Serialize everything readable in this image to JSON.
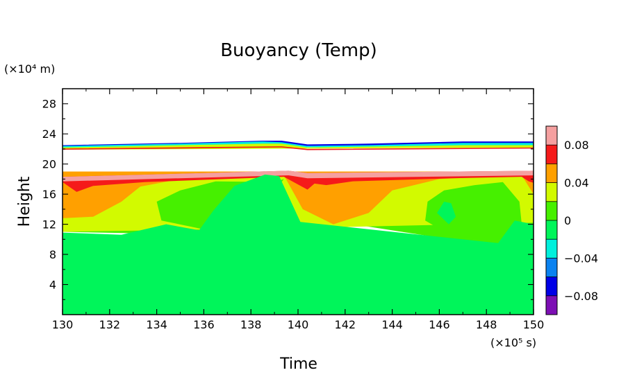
{
  "chart_data": {
    "type": "heatmap",
    "title": "Buoyancy (Temp)",
    "xlabel": "Time",
    "ylabel": "Height",
    "x_unit": "(×10⁵ s)",
    "y_unit": "(×10⁴ m)",
    "xlim": [
      130,
      150
    ],
    "ylim": [
      0,
      30
    ],
    "x_ticks": [
      "130",
      "132",
      "134",
      "136",
      "138",
      "140",
      "142",
      "144",
      "146",
      "148",
      "150"
    ],
    "y_ticks": [
      "4",
      "8",
      "12",
      "16",
      "20",
      "24",
      "28"
    ],
    "colorbar": {
      "range": [
        -0.1,
        0.1
      ],
      "labels": [
        "−0.08",
        "−0.04",
        "0",
        "0.04",
        "0.08"
      ],
      "label_values": [
        -0.08,
        -0.04,
        0,
        0.04,
        0.08
      ],
      "levels": [
        {
          "min": -0.1,
          "max": -0.08,
          "color": "#7d0fb4"
        },
        {
          "min": -0.08,
          "max": -0.06,
          "color": "#0000e6"
        },
        {
          "min": -0.06,
          "max": -0.04,
          "color": "#0a82f0"
        },
        {
          "min": -0.04,
          "max": -0.02,
          "color": "#00f0dc"
        },
        {
          "min": -0.02,
          "max": 0.0,
          "color": "#00f55a"
        },
        {
          "min": 0.0,
          "max": 0.02,
          "color": "#46f000"
        },
        {
          "min": 0.02,
          "max": 0.04,
          "color": "#d2fa00"
        },
        {
          "min": 0.04,
          "max": 0.06,
          "color": "#ffa000"
        },
        {
          "min": 0.06,
          "max": 0.08,
          "color": "#f51a1a"
        },
        {
          "min": 0.08,
          "max": 0.1,
          "color": "#f5a0a0"
        }
      ]
    },
    "regions": [
      {
        "level": "0 to 0.02",
        "color": "#46f000",
        "points": [
          [
            130,
            11
          ],
          [
            138.2,
            10.5
          ],
          [
            139.6,
            19
          ],
          [
            140.3,
            13
          ],
          [
            148.5,
            9
          ],
          [
            150,
            12
          ],
          [
            150,
            19
          ],
          [
            130,
            19
          ]
        ]
      },
      {
        "level": "0.02 to 0.04",
        "color": "#d2fa00",
        "points": [
          [
            130,
            11
          ],
          [
            140,
            11.5
          ],
          [
            150,
            12.2
          ],
          [
            150,
            19
          ],
          [
            130,
            19
          ]
        ]
      },
      {
        "level": "0.04 to 0.06",
        "color": "#ffa000",
        "points": [
          [
            130,
            12.8
          ],
          [
            131.3,
            13
          ],
          [
            132.5,
            15
          ],
          [
            133.3,
            17
          ],
          [
            135,
            18
          ],
          [
            139.4,
            18.5
          ],
          [
            140.2,
            14
          ],
          [
            141.5,
            12
          ],
          [
            143,
            13.5
          ],
          [
            144,
            16.5
          ],
          [
            146,
            18
          ],
          [
            149.5,
            18.5
          ],
          [
            150,
            16
          ],
          [
            150,
            19
          ],
          [
            130,
            19
          ]
        ]
      },
      {
        "level": "0.06 to 0.08",
        "color": "#f51a1a",
        "points": [
          [
            130,
            18.3
          ],
          [
            139.6,
            19.1
          ],
          [
            140.4,
            18.8
          ],
          [
            150,
            19.1
          ],
          [
            150,
            17.5
          ],
          [
            149.8,
            17.7
          ],
          [
            149.5,
            18.3
          ],
          [
            146.5,
            18.1
          ],
          [
            142.3,
            17.7
          ],
          [
            141.2,
            17.2
          ],
          [
            140.7,
            17.4
          ],
          [
            140.4,
            16.6
          ],
          [
            139.4,
            18.3
          ],
          [
            133.5,
            17.6
          ],
          [
            131.3,
            17.1
          ],
          [
            130.6,
            16.3
          ],
          [
            130,
            17.6
          ]
        ]
      },
      {
        "level": "0.08 to 0.10",
        "color": "#f5a0a0",
        "points": [
          [
            130,
            18.3
          ],
          [
            139.6,
            19.1
          ],
          [
            140.4,
            18.8
          ],
          [
            150,
            19.1
          ],
          [
            150,
            18.5
          ],
          [
            140.4,
            18.1
          ],
          [
            139.6,
            18.5
          ],
          [
            130,
            17.7
          ]
        ]
      },
      {
        "level": "0 to 0.02",
        "color": "#46f000",
        "points": [
          [
            134,
            15
          ],
          [
            135,
            16.5
          ],
          [
            136.5,
            17.7
          ],
          [
            139,
            17.6
          ],
          [
            139.4,
            18
          ],
          [
            138.4,
            14
          ],
          [
            137.2,
            11
          ],
          [
            136.5,
            11
          ],
          [
            134.2,
            12.5
          ]
        ]
      },
      {
        "level": "0 to 0.02",
        "color": "#46f000",
        "points": [
          [
            145.5,
            15
          ],
          [
            146.2,
            16.5
          ],
          [
            147.5,
            17.2
          ],
          [
            148.7,
            17.6
          ],
          [
            149.4,
            15
          ],
          [
            149.5,
            12
          ],
          [
            146.5,
            10.5
          ],
          [
            145.4,
            12.5
          ]
        ]
      },
      {
        "level": "-0.02 to 0",
        "color": "#00f55a",
        "points": [
          [
            130,
            0
          ],
          [
            150,
            0
          ],
          [
            150,
            12
          ],
          [
            149.2,
            12.5
          ],
          [
            148.5,
            9.5
          ],
          [
            144,
            11
          ],
          [
            140.1,
            12.3
          ],
          [
            139.2,
            18.4
          ],
          [
            138.6,
            18.6
          ],
          [
            137.3,
            17.1
          ],
          [
            137.0,
            16.0
          ],
          [
            136.4,
            13.8
          ],
          [
            135.8,
            11.2
          ],
          [
            134.4,
            12.0
          ],
          [
            132.5,
            10.6
          ],
          [
            130,
            10.9
          ]
        ]
      },
      {
        "level": "-0.02 to 0",
        "color": "#00f55a",
        "points": [
          [
            145.9,
            13.5
          ],
          [
            146.2,
            15.0
          ],
          [
            146.5,
            14.8
          ],
          [
            146.7,
            13.0
          ],
          [
            146.4,
            12.0
          ]
        ]
      },
      {
        "level": "-0.10 to -0.04 (upper band)",
        "color": "#0000e6",
        "points": [
          [
            130,
            22.5
          ],
          [
            135,
            22.8
          ],
          [
            138.5,
            23.1
          ],
          [
            139.3,
            23.1
          ],
          [
            140.4,
            22.6
          ],
          [
            143,
            22.7
          ],
          [
            147,
            23.0
          ],
          [
            150,
            23.0
          ],
          [
            150,
            22.6
          ],
          [
            130,
            22.2
          ]
        ]
      },
      {
        "level": "-0.04 to -0.02 (upper band)",
        "color": "#00f0dc",
        "points": [
          [
            130,
            22.4
          ],
          [
            135,
            22.7
          ],
          [
            138.5,
            23.0
          ],
          [
            139.3,
            22.9
          ],
          [
            140.4,
            22.4
          ],
          [
            143,
            22.5
          ],
          [
            147,
            22.8
          ],
          [
            150,
            22.8
          ],
          [
            150,
            22.4
          ],
          [
            130,
            22.0
          ]
        ]
      },
      {
        "level": "0.02 to 0.04 (upper band)",
        "color": "#d2fa00",
        "points": [
          [
            130,
            22.2
          ],
          [
            138.5,
            22.7
          ],
          [
            139.3,
            22.7
          ],
          [
            140.4,
            22.2
          ],
          [
            147,
            22.5
          ],
          [
            150,
            22.5
          ],
          [
            150,
            22.2
          ],
          [
            130,
            21.9
          ]
        ]
      },
      {
        "level": "0.06 to 0.08 (upper band)",
        "color": "#f51a1a",
        "points": [
          [
            130,
            22.05
          ],
          [
            139.3,
            22.35
          ],
          [
            140.4,
            22.0
          ],
          [
            150,
            22.2
          ],
          [
            150,
            22.05
          ],
          [
            140.4,
            21.85
          ],
          [
            139.3,
            22.2
          ],
          [
            130,
            21.9
          ]
        ]
      }
    ]
  }
}
